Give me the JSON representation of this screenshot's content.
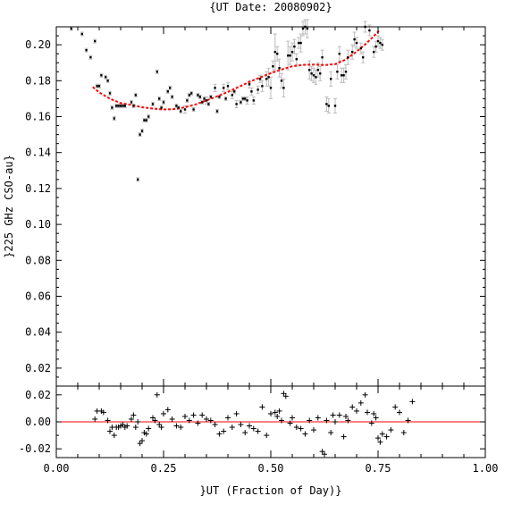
{
  "chart_data": [
    {
      "type": "scatter",
      "title": "{UT Date: 20080902}",
      "ylabel": "}225 GHz CSO-au}",
      "xlim": [
        0.0,
        1.0
      ],
      "ylim": [
        0.01,
        0.21
      ],
      "yticks": [
        0.02,
        0.04,
        0.06,
        0.08,
        0.1,
        0.12,
        0.14,
        0.16,
        0.18,
        0.2
      ],
      "ytick_labels": [
        "0.02",
        "0.04",
        "0.06",
        "0.08",
        "0.10",
        "0.12",
        "0.14",
        "0.16",
        "0.18",
        "0.20"
      ],
      "colors": {
        "points": "#000000",
        "fit": "#ff0000",
        "errorbars": "#bbbbbb"
      },
      "series": [
        {
          "kind": "points_with_errorbars",
          "x": [
            0.035,
            0.06,
            0.07,
            0.08,
            0.09,
            0.095,
            0.1,
            0.105,
            0.115,
            0.12,
            0.125,
            0.13,
            0.135,
            0.14,
            0.145,
            0.15,
            0.155,
            0.16,
            0.175,
            0.18,
            0.185,
            0.19,
            0.195,
            0.2,
            0.205,
            0.21,
            0.215,
            0.225,
            0.235,
            0.24,
            0.245,
            0.25,
            0.26,
            0.265,
            0.27,
            0.28,
            0.285,
            0.29,
            0.3,
            0.305,
            0.31,
            0.315,
            0.32,
            0.33,
            0.335,
            0.34,
            0.345,
            0.35,
            0.355,
            0.36,
            0.37,
            0.375,
            0.38,
            0.39,
            0.395,
            0.4,
            0.41,
            0.415,
            0.42,
            0.43,
            0.435,
            0.44,
            0.445,
            0.45,
            0.455,
            0.46,
            0.47,
            0.475,
            0.48,
            0.49,
            0.495,
            0.5,
            0.505,
            0.51,
            0.515,
            0.52,
            0.525,
            0.53,
            0.54,
            0.545,
            0.55,
            0.555,
            0.56,
            0.565,
            0.57,
            0.575,
            0.58,
            0.585,
            0.59,
            0.595,
            0.6,
            0.605,
            0.61,
            0.615,
            0.62,
            0.63,
            0.635,
            0.64,
            0.65,
            0.655,
            0.66,
            0.665,
            0.67,
            0.675,
            0.68,
            0.69,
            0.695,
            0.7,
            0.71,
            0.715,
            0.72,
            0.73,
            0.74,
            0.745,
            0.75,
            0.755,
            0.76
          ],
          "y": [
            0.209,
            0.206,
            0.197,
            0.193,
            0.202,
            0.177,
            0.177,
            0.183,
            0.182,
            0.18,
            0.173,
            0.165,
            0.159,
            0.166,
            0.166,
            0.166,
            0.166,
            0.166,
            0.168,
            0.166,
            0.172,
            0.125,
            0.15,
            0.152,
            0.158,
            0.158,
            0.16,
            0.167,
            0.185,
            0.17,
            0.165,
            0.168,
            0.174,
            0.176,
            0.171,
            0.166,
            0.165,
            0.163,
            0.164,
            0.169,
            0.172,
            0.173,
            0.164,
            0.172,
            0.171,
            0.168,
            0.17,
            0.169,
            0.167,
            0.171,
            0.176,
            0.163,
            0.171,
            0.176,
            0.17,
            0.177,
            0.172,
            0.174,
            0.167,
            0.168,
            0.17,
            0.17,
            0.169,
            0.178,
            0.174,
            0.169,
            0.175,
            0.181,
            0.177,
            0.181,
            0.182,
            0.176,
            0.188,
            0.196,
            0.195,
            0.187,
            0.18,
            0.176,
            0.194,
            0.194,
            0.196,
            0.199,
            0.192,
            0.201,
            0.201,
            0.209,
            0.21,
            0.209,
            0.186,
            0.184,
            0.183,
            0.182,
            0.186,
            0.184,
            0.193,
            0.167,
            0.166,
            0.181,
            0.166,
            0.185,
            0.195,
            0.183,
            0.183,
            0.185,
            0.193,
            0.196,
            0.203,
            0.201,
            0.198,
            0.193,
            0.21,
            0.208,
            0.196,
            0.199,
            0.202,
            0.201,
            0.2
          ],
          "yerr": [
            0.001,
            0.001,
            0.001,
            0.001,
            0.001,
            0.001,
            0.001,
            0.001,
            0.001,
            0.001,
            0.001,
            0.001,
            0.001,
            0.001,
            0.001,
            0.001,
            0.001,
            0.001,
            0.001,
            0.001,
            0.001,
            0.001,
            0.001,
            0.001,
            0.001,
            0.001,
            0.001,
            0.001,
            0.001,
            0.001,
            0.001,
            0.001,
            0.001,
            0.001,
            0.001,
            0.001,
            0.001,
            0.001,
            0.002,
            0.001,
            0.001,
            0.001,
            0.001,
            0.001,
            0.001,
            0.001,
            0.001,
            0.002,
            0.001,
            0.001,
            0.002,
            0.001,
            0.001,
            0.002,
            0.001,
            0.002,
            0.002,
            0.001,
            0.002,
            0.001,
            0.001,
            0.001,
            0.002,
            0.002,
            0.002,
            0.002,
            0.002,
            0.002,
            0.003,
            0.004,
            0.005,
            0.006,
            0.003,
            0.01,
            0.004,
            0.005,
            0.004,
            0.005,
            0.008,
            0.005,
            0.005,
            0.004,
            0.003,
            0.003,
            0.005,
            0.004,
            0.004,
            0.005,
            0.005,
            0.004,
            0.004,
            0.004,
            0.004,
            0.004,
            0.004,
            0.004,
            0.004,
            0.004,
            0.004,
            0.004,
            0.004,
            0.004,
            0.004,
            0.004,
            0.004,
            0.004,
            0.004,
            0.003,
            0.003,
            0.003,
            0.003,
            0.003,
            0.003,
            0.003,
            0.003,
            0.003,
            0.003
          ]
        },
        {
          "kind": "fit_line",
          "x": [
            0.085,
            0.1,
            0.125,
            0.15,
            0.175,
            0.2,
            0.225,
            0.25,
            0.275,
            0.3,
            0.325,
            0.35,
            0.375,
            0.4,
            0.425,
            0.45,
            0.475,
            0.5,
            0.525,
            0.55,
            0.575,
            0.6,
            0.625,
            0.65,
            0.675,
            0.7,
            0.72,
            0.74,
            0.755
          ],
          "y": [
            0.1765,
            0.1735,
            0.17,
            0.1675,
            0.1665,
            0.1652,
            0.1645,
            0.164,
            0.1642,
            0.1652,
            0.1668,
            0.169,
            0.1713,
            0.1738,
            0.1765,
            0.1793,
            0.1818,
            0.1842,
            0.1862,
            0.188,
            0.1888,
            0.189,
            0.1887,
            0.1892,
            0.1918,
            0.1962,
            0.2002,
            0.2048,
            0.2085
          ]
        }
      ]
    },
    {
      "type": "scatter",
      "xlabel": "}UT (Fraction of Day)}",
      "xlim": [
        0.0,
        1.0
      ],
      "ylim": [
        -0.0265,
        0.0265
      ],
      "xticks": [
        0.0,
        0.25,
        0.5,
        0.75,
        1.0
      ],
      "xtick_labels": [
        "0.00",
        "0.25",
        "0.50",
        "0.75",
        "1.00"
      ],
      "yticks": [
        -0.02,
        0.0,
        0.02
      ],
      "ytick_labels": [
        "-0.02",
        "0.00",
        "0.02"
      ],
      "colors": {
        "points": "#000000",
        "zero_line": "#ff0000"
      },
      "series": [
        {
          "kind": "residuals",
          "x": [
            0.09,
            0.095,
            0.105,
            0.11,
            0.12,
            0.125,
            0.13,
            0.135,
            0.14,
            0.145,
            0.15,
            0.155,
            0.16,
            0.165,
            0.175,
            0.18,
            0.185,
            0.19,
            0.195,
            0.2,
            0.205,
            0.21,
            0.215,
            0.225,
            0.23,
            0.235,
            0.24,
            0.245,
            0.25,
            0.26,
            0.27,
            0.28,
            0.29,
            0.3,
            0.31,
            0.32,
            0.33,
            0.34,
            0.35,
            0.36,
            0.37,
            0.38,
            0.39,
            0.4,
            0.41,
            0.42,
            0.43,
            0.44,
            0.45,
            0.46,
            0.47,
            0.48,
            0.49,
            0.5,
            0.51,
            0.515,
            0.52,
            0.525,
            0.53,
            0.535,
            0.545,
            0.55,
            0.56,
            0.57,
            0.58,
            0.59,
            0.6,
            0.61,
            0.62,
            0.625,
            0.63,
            0.64,
            0.645,
            0.65,
            0.66,
            0.67,
            0.675,
            0.68,
            0.69,
            0.7,
            0.71,
            0.72,
            0.725,
            0.735,
            0.74,
            0.745,
            0.75,
            0.755,
            0.76,
            0.77,
            0.78,
            0.79,
            0.8,
            0.81,
            0.82,
            0.83
          ],
          "y": [
            0.002,
            0.008,
            0.008,
            0.007,
            0.001,
            -0.007,
            -0.004,
            -0.01,
            -0.004,
            -0.004,
            -0.003,
            -0.002,
            -0.004,
            -0.003,
            0.002,
            0.005,
            -0.004,
            0.0,
            -0.016,
            -0.014,
            -0.008,
            -0.009,
            -0.005,
            0.003,
            0.001,
            0.02,
            -0.002,
            -0.004,
            0.006,
            0.009,
            0.002,
            -0.003,
            -0.004,
            0.004,
            0.001,
            0.005,
            -0.001,
            0.005,
            0.002,
            0.001,
            -0.002,
            -0.009,
            -0.007,
            0.003,
            -0.004,
            0.006,
            -0.002,
            -0.008,
            -0.003,
            -0.005,
            -0.007,
            0.011,
            -0.01,
            0.006,
            0.007,
            0.004,
            0.008,
            0.001,
            0.021,
            0.019,
            -0.001,
            0.003,
            -0.004,
            -0.005,
            -0.009,
            0.001,
            -0.006,
            0.003,
            -0.022,
            -0.024,
            0.001,
            -0.008,
            0.005,
            0.0,
            0.005,
            -0.011,
            0.004,
            0.001,
            0.011,
            0.008,
            0.014,
            0.02,
            0.007,
            -0.001,
            0.006,
            0.003,
            -0.012,
            -0.015,
            -0.009,
            -0.011,
            -0.006,
            0.011,
            0.007,
            -0.008,
            0.001,
            0.015
          ],
          "zero_line": 0.0
        }
      ]
    }
  ]
}
